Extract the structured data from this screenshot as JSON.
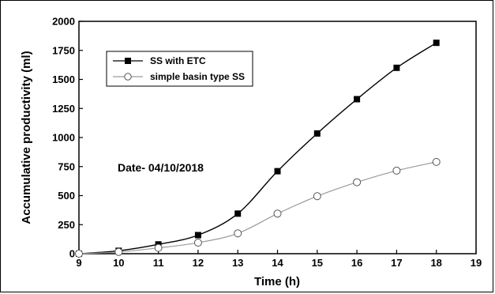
{
  "chart_data": {
    "type": "line",
    "xlabel": "Time (h)",
    "ylabel": "Accumulative productivity (ml)",
    "xlim": [
      9,
      19
    ],
    "ylim": [
      0,
      2000
    ],
    "x_ticks": [
      9,
      10,
      11,
      12,
      13,
      14,
      15,
      16,
      17,
      18,
      19
    ],
    "y_ticks": [
      0,
      250,
      500,
      750,
      1000,
      1250,
      1500,
      1750,
      2000
    ],
    "grid": false,
    "legend_position": "top-left",
    "annotation": "Date- 04/10/2018",
    "series": [
      {
        "name": "SS with ETC",
        "marker": "filled-square",
        "color": "#000000",
        "x": [
          9,
          10,
          11,
          12,
          13,
          14,
          15,
          16,
          17,
          18
        ],
        "y": [
          0,
          25,
          80,
          160,
          345,
          710,
          1035,
          1330,
          1600,
          1815
        ]
      },
      {
        "name": "simple basin type SS",
        "marker": "open-circle",
        "color": "#9a9a9a",
        "x": [
          9,
          10,
          11,
          12,
          13,
          14,
          15,
          16,
          17,
          18
        ],
        "y": [
          0,
          15,
          50,
          95,
          175,
          345,
          495,
          615,
          715,
          790
        ]
      }
    ]
  }
}
